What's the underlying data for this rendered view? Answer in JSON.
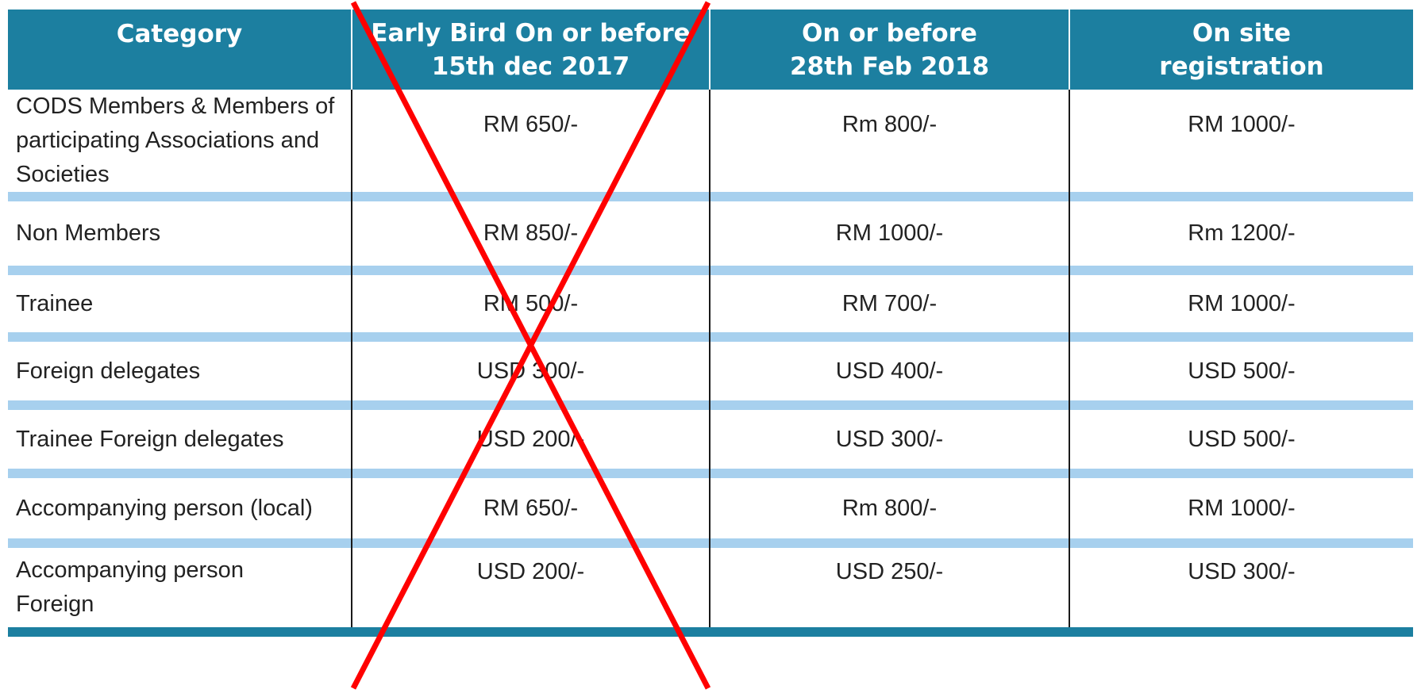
{
  "table": {
    "headers": [
      [
        "Category"
      ],
      [
        "Early Bird On or before",
        "15th dec 2017"
      ],
      [
        "On or before",
        "28th Feb 2018"
      ],
      [
        "On site",
        "registration"
      ]
    ],
    "rows": [
      {
        "category": [
          "CODS Members & Members of",
          "participating Associations and",
          "Societies"
        ],
        "early": "RM 650/-",
        "feb": "Rm 800/-",
        "onsite": "RM 1000/-"
      },
      {
        "category": [
          "Non Members"
        ],
        "early": "RM 850/-",
        "feb": "RM 1000/-",
        "onsite": "Rm 1200/-"
      },
      {
        "category": [
          "Trainee"
        ],
        "early": "RM 500/-",
        "feb": "RM 700/-",
        "onsite": "RM 1000/-"
      },
      {
        "category": [
          "Foreign delegates"
        ],
        "early": "USD 300/-",
        "feb": "USD 400/-",
        "onsite": "USD 500/-"
      },
      {
        "category": [
          "Trainee Foreign delegates"
        ],
        "early": "USD 200/-",
        "feb": "USD 300/-",
        "onsite": "USD 500/-"
      },
      {
        "category": [
          "Accompanying person (local)"
        ],
        "early": "RM 650/-",
        "feb": "Rm 800/-",
        "onsite": "RM 1000/-"
      },
      {
        "category": [
          "Accompanying person",
          "Foreign"
        ],
        "early": "USD 200/-",
        "feb": "USD 250/-",
        "onsite": "USD 300/-"
      }
    ]
  },
  "colors": {
    "header_bg": "#1c7fa0",
    "separator": "#a7d0ee",
    "strike": "#ff0000"
  }
}
